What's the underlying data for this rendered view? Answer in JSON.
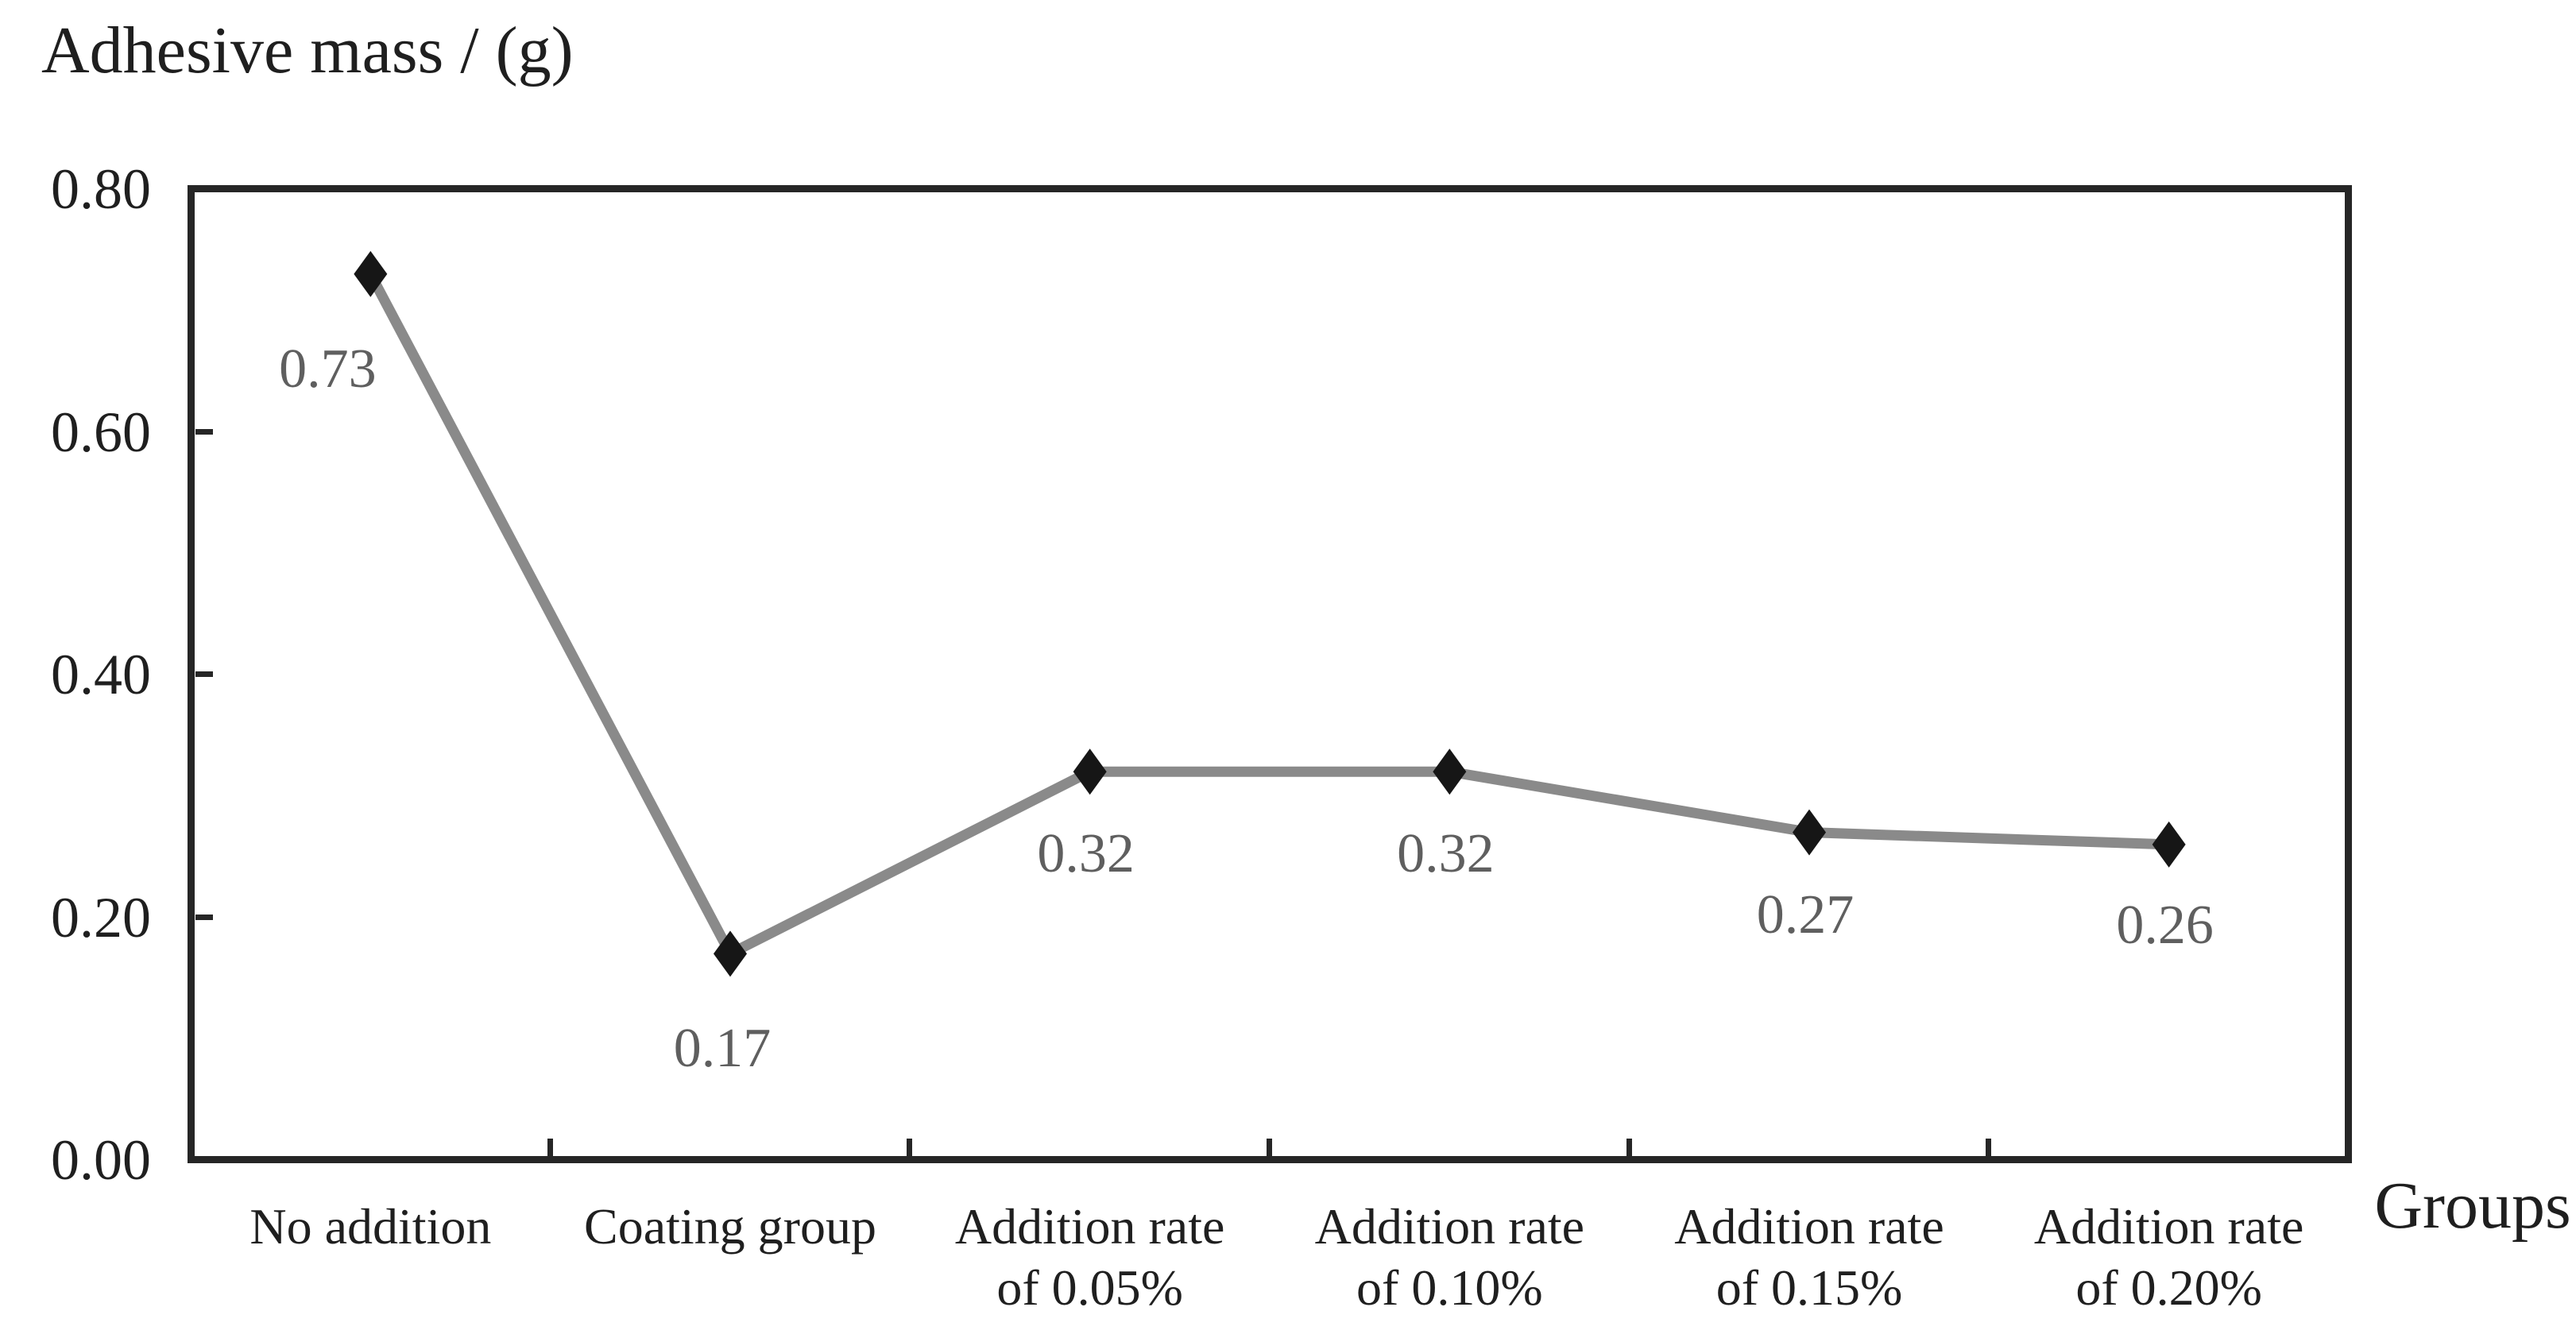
{
  "chart_data": {
    "type": "line",
    "title": "Adhesive mass / (g)",
    "xlabel": "Groups",
    "ylabel": "Adhesive mass / (g)",
    "categories": [
      "No addition",
      "Coating group",
      "Addition rate\nof 0.05%",
      "Addition rate\nof 0.10%",
      "Addition rate\nof 0.15%",
      "Addition rate\nof 0.20%"
    ],
    "series": [
      {
        "name": "Adhesive mass",
        "values": [
          0.73,
          0.17,
          0.32,
          0.32,
          0.27,
          0.26
        ]
      }
    ],
    "point_labels": [
      "0.73",
      "0.17",
      "0.32",
      "0.32",
      "0.27",
      "0.26"
    ],
    "ylim": [
      0,
      0.8
    ],
    "yticks": [
      {
        "value": 0.8,
        "label": "0.80"
      },
      {
        "value": 0.6,
        "label": "0.60"
      },
      {
        "value": 0.4,
        "label": "0.40"
      },
      {
        "value": 0.2,
        "label": "0.20"
      },
      {
        "value": 0.0,
        "label": "0.00"
      }
    ],
    "grid": false,
    "legend": "none",
    "marker": "diamond",
    "colors": {
      "line": "#8a8a8a",
      "marker": "#161616",
      "axis": "#262626",
      "text": "#1f1f1f",
      "data_label": "#5f5f5f",
      "background": "#ffffff"
    }
  }
}
